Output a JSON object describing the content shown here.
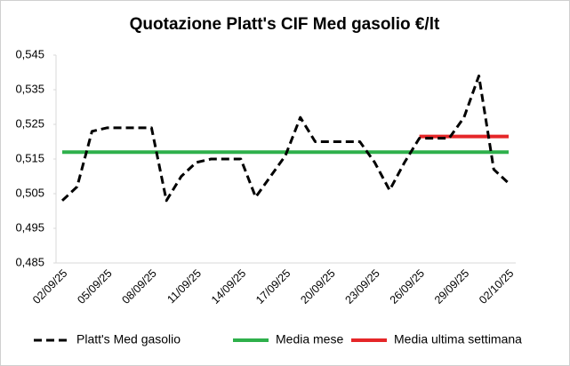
{
  "chart_data": {
    "type": "line",
    "title": "Quotazione Platt's CIF Med gasolio €/lt",
    "categories": [
      "02/09/25",
      null,
      null,
      "05/09/25",
      null,
      null,
      "08/09/25",
      null,
      null,
      "11/09/25",
      null,
      null,
      "14/09/25",
      null,
      null,
      "17/09/25",
      null,
      null,
      "20/09/25",
      null,
      null,
      "23/09/25",
      null,
      null,
      "26/09/25",
      null,
      null,
      "29/09/25",
      null,
      null,
      "02/10/25"
    ],
    "series": [
      {
        "name": "Platt's Med gasolio",
        "color": "#000000",
        "dashed": true,
        "values": [
          0.503,
          0.507,
          0.523,
          0.524,
          0.524,
          0.524,
          0.524,
          0.503,
          0.51,
          0.514,
          0.515,
          0.515,
          0.515,
          0.504,
          0.51,
          0.516,
          0.527,
          0.52,
          0.52,
          0.52,
          0.52,
          0.514,
          0.506,
          0.514,
          0.521,
          0.521,
          0.521,
          0.527,
          0.539,
          0.512,
          0.508
        ]
      },
      {
        "name": "Media mese",
        "color": "#2eb04b",
        "dashed": false,
        "values": [
          0.517,
          0.517,
          0.517,
          0.517,
          0.517,
          0.517,
          0.517,
          0.517,
          0.517,
          0.517,
          0.517,
          0.517,
          0.517,
          0.517,
          0.517,
          0.517,
          0.517,
          0.517,
          0.517,
          0.517,
          0.517,
          0.517,
          0.517,
          0.517,
          0.517,
          0.517,
          0.517,
          0.517,
          0.517,
          0.517,
          0.517
        ]
      },
      {
        "name": "Media ultima settimana",
        "color": "#e52628",
        "dashed": false,
        "values": [
          null,
          null,
          null,
          null,
          null,
          null,
          null,
          null,
          null,
          null,
          null,
          null,
          null,
          null,
          null,
          null,
          null,
          null,
          null,
          null,
          null,
          null,
          null,
          null,
          0.5215,
          0.5215,
          0.5215,
          0.5215,
          0.5215,
          0.5215,
          0.5215
        ]
      }
    ],
    "ylim": [
      0.485,
      0.545
    ],
    "yticks": [
      {
        "value": 0.485,
        "label": "0,485"
      },
      {
        "value": 0.495,
        "label": "0,495"
      },
      {
        "value": 0.505,
        "label": "0,505"
      },
      {
        "value": 0.515,
        "label": "0,515"
      },
      {
        "value": 0.525,
        "label": "0,525"
      },
      {
        "value": 0.535,
        "label": "0,535"
      },
      {
        "value": 0.545,
        "label": "0,545"
      }
    ],
    "grid": false,
    "legend": "bottom"
  }
}
